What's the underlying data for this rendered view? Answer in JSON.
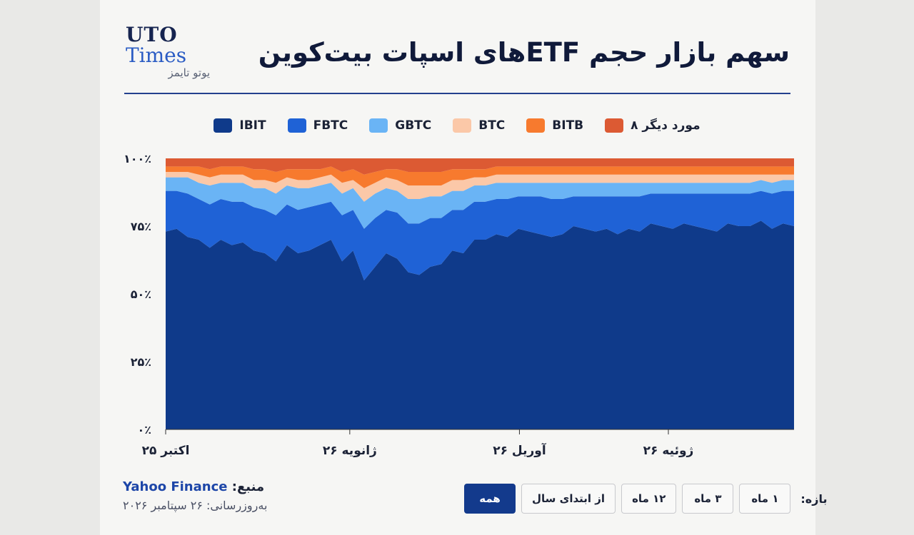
{
  "brand": {
    "line1": "UTO",
    "line2": "Times",
    "fa": "یوتو تایمز"
  },
  "title": "سهم بازار حجم ETFهای اسپات بیت‌کوین",
  "source": {
    "label": "منبع:",
    "name": "Yahoo Finance",
    "updated": "به‌روزرسانی: ۲۶ سپتامبر ۲۰۲۶"
  },
  "ranges": {
    "label": "بازه:",
    "buttons": [
      "۱ ماه",
      "۳ ماه",
      "۱۲ ماه",
      "از ابتدای سال",
      "همه"
    ],
    "active": "همه"
  },
  "chart_data": {
    "type": "area",
    "stacked": true,
    "normalized": true,
    "y_ticks": [
      "۰٪",
      "۲۵٪",
      "۵۰٪",
      "۷۵٪",
      "۱۰۰٪"
    ],
    "ylim": [
      0,
      100
    ],
    "x_ticks": [
      {
        "label": "اکتبر ۲۵",
        "pos": 0
      },
      {
        "label": "ژانویه ۲۶",
        "pos": 0.293
      },
      {
        "label": "آوریل ۲۶",
        "pos": 0.563
      },
      {
        "label": "ژوئیه ۲۶",
        "pos": 0.8
      }
    ],
    "x_start": "2025-10-01",
    "x_end": "2026-09-26",
    "series": [
      {
        "name": "IBIT",
        "color": "#0f3a8a",
        "values": [
          73,
          74,
          71,
          70,
          67,
          70,
          68,
          69,
          66,
          65,
          62,
          68,
          65,
          66,
          68,
          70,
          62,
          66,
          55,
          60,
          65,
          63,
          58,
          57,
          60,
          61,
          66,
          65,
          70,
          70,
          72,
          71,
          74,
          73,
          72,
          71,
          72,
          75,
          74,
          73,
          74,
          72,
          74,
          73,
          76,
          75,
          74,
          76,
          75,
          74,
          73,
          76,
          75,
          75,
          77,
          74,
          76,
          75
        ]
      },
      {
        "name": "FBTC",
        "color": "#1f62d6",
        "values": [
          15,
          14,
          16,
          15,
          16,
          15,
          16,
          15,
          16,
          16,
          17,
          15,
          16,
          16,
          15,
          14,
          17,
          15,
          19,
          18,
          16,
          17,
          18,
          19,
          18,
          17,
          15,
          16,
          14,
          14,
          13,
          14,
          12,
          13,
          14,
          14,
          13,
          11,
          12,
          13,
          12,
          14,
          12,
          13,
          11,
          12,
          13,
          11,
          12,
          13,
          14,
          11,
          12,
          12,
          11,
          13,
          12,
          13
        ]
      },
      {
        "name": "GBTC",
        "color": "#6ab4f5",
        "values": [
          5,
          5,
          6,
          6,
          7,
          6,
          7,
          7,
          7,
          8,
          8,
          7,
          8,
          7,
          7,
          7,
          8,
          8,
          10,
          9,
          8,
          8,
          9,
          9,
          8,
          8,
          7,
          7,
          6,
          6,
          6,
          6,
          5,
          5,
          5,
          6,
          6,
          5,
          5,
          5,
          5,
          5,
          5,
          5,
          4,
          4,
          4,
          4,
          4,
          4,
          4,
          4,
          4,
          4,
          4,
          4,
          4,
          4
        ]
      },
      {
        "name": "BTC",
        "color": "#fbc8a8",
        "values": [
          2,
          2,
          2,
          3,
          3,
          3,
          3,
          3,
          3,
          3,
          4,
          3,
          3,
          3,
          3,
          3,
          4,
          3,
          5,
          4,
          4,
          4,
          5,
          5,
          4,
          4,
          4,
          4,
          3,
          3,
          3,
          3,
          3,
          3,
          3,
          3,
          3,
          3,
          3,
          3,
          3,
          3,
          3,
          3,
          3,
          3,
          3,
          3,
          3,
          3,
          3,
          3,
          3,
          3,
          2,
          3,
          2,
          2
        ]
      },
      {
        "name": "BITB",
        "color": "#f77a2e",
        "values": [
          2,
          2,
          2,
          3,
          3,
          3,
          3,
          3,
          4,
          4,
          4,
          3,
          4,
          4,
          3,
          3,
          4,
          4,
          5,
          4,
          3,
          4,
          5,
          5,
          5,
          5,
          4,
          4,
          3,
          3,
          3,
          3,
          3,
          3,
          3,
          3,
          3,
          3,
          3,
          3,
          3,
          3,
          3,
          3,
          3,
          3,
          3,
          3,
          3,
          3,
          3,
          3,
          3,
          3,
          3,
          3,
          3,
          3
        ]
      },
      {
        "name": "۸ مورد دیگر",
        "color": "#dc5a33",
        "values": [
          3,
          3,
          3,
          3,
          4,
          3,
          3,
          3,
          4,
          4,
          5,
          4,
          4,
          4,
          4,
          3,
          5,
          4,
          6,
          5,
          4,
          4,
          5,
          5,
          5,
          5,
          4,
          4,
          4,
          4,
          3,
          3,
          3,
          3,
          3,
          3,
          3,
          3,
          3,
          3,
          3,
          3,
          3,
          3,
          3,
          3,
          3,
          3,
          3,
          3,
          3,
          3,
          3,
          3,
          3,
          3,
          3,
          3
        ]
      }
    ]
  }
}
